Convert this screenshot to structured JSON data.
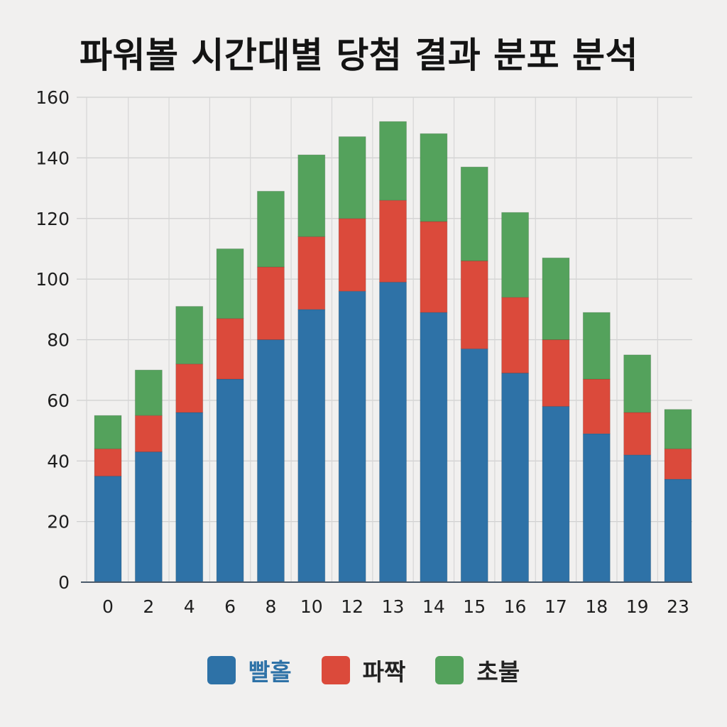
{
  "chart_data": {
    "type": "bar",
    "stacked": true,
    "title": "파워볼 시간대별 당첨 결과 분포 분석",
    "xlabel": "",
    "ylabel": "",
    "categories": [
      "0",
      "2",
      "4",
      "6",
      "8",
      "10",
      "12",
      "13",
      "14",
      "15",
      "16",
      "17",
      "18",
      "19",
      "23"
    ],
    "ylim": [
      0,
      160
    ],
    "yticks": [
      "0",
      "20",
      "40",
      "60",
      "80",
      "100",
      "120",
      "140",
      "160"
    ],
    "grid": true,
    "legend_position": "bottom-center",
    "series": [
      {
        "name": "빨홀",
        "color": "#2e72a7",
        "values": [
          35,
          43,
          56,
          67,
          80,
          90,
          96,
          99,
          89,
          77,
          69,
          58,
          49,
          42,
          34
        ]
      },
      {
        "name": "파짝",
        "color": "#db4a3b",
        "values": [
          9,
          12,
          16,
          20,
          24,
          24,
          24,
          27,
          30,
          29,
          25,
          22,
          18,
          14,
          10
        ]
      },
      {
        "name": "초불",
        "color": "#54a25c",
        "values": [
          11,
          15,
          19,
          23,
          25,
          27,
          27,
          26,
          29,
          31,
          28,
          27,
          22,
          19,
          13
        ]
      }
    ]
  }
}
